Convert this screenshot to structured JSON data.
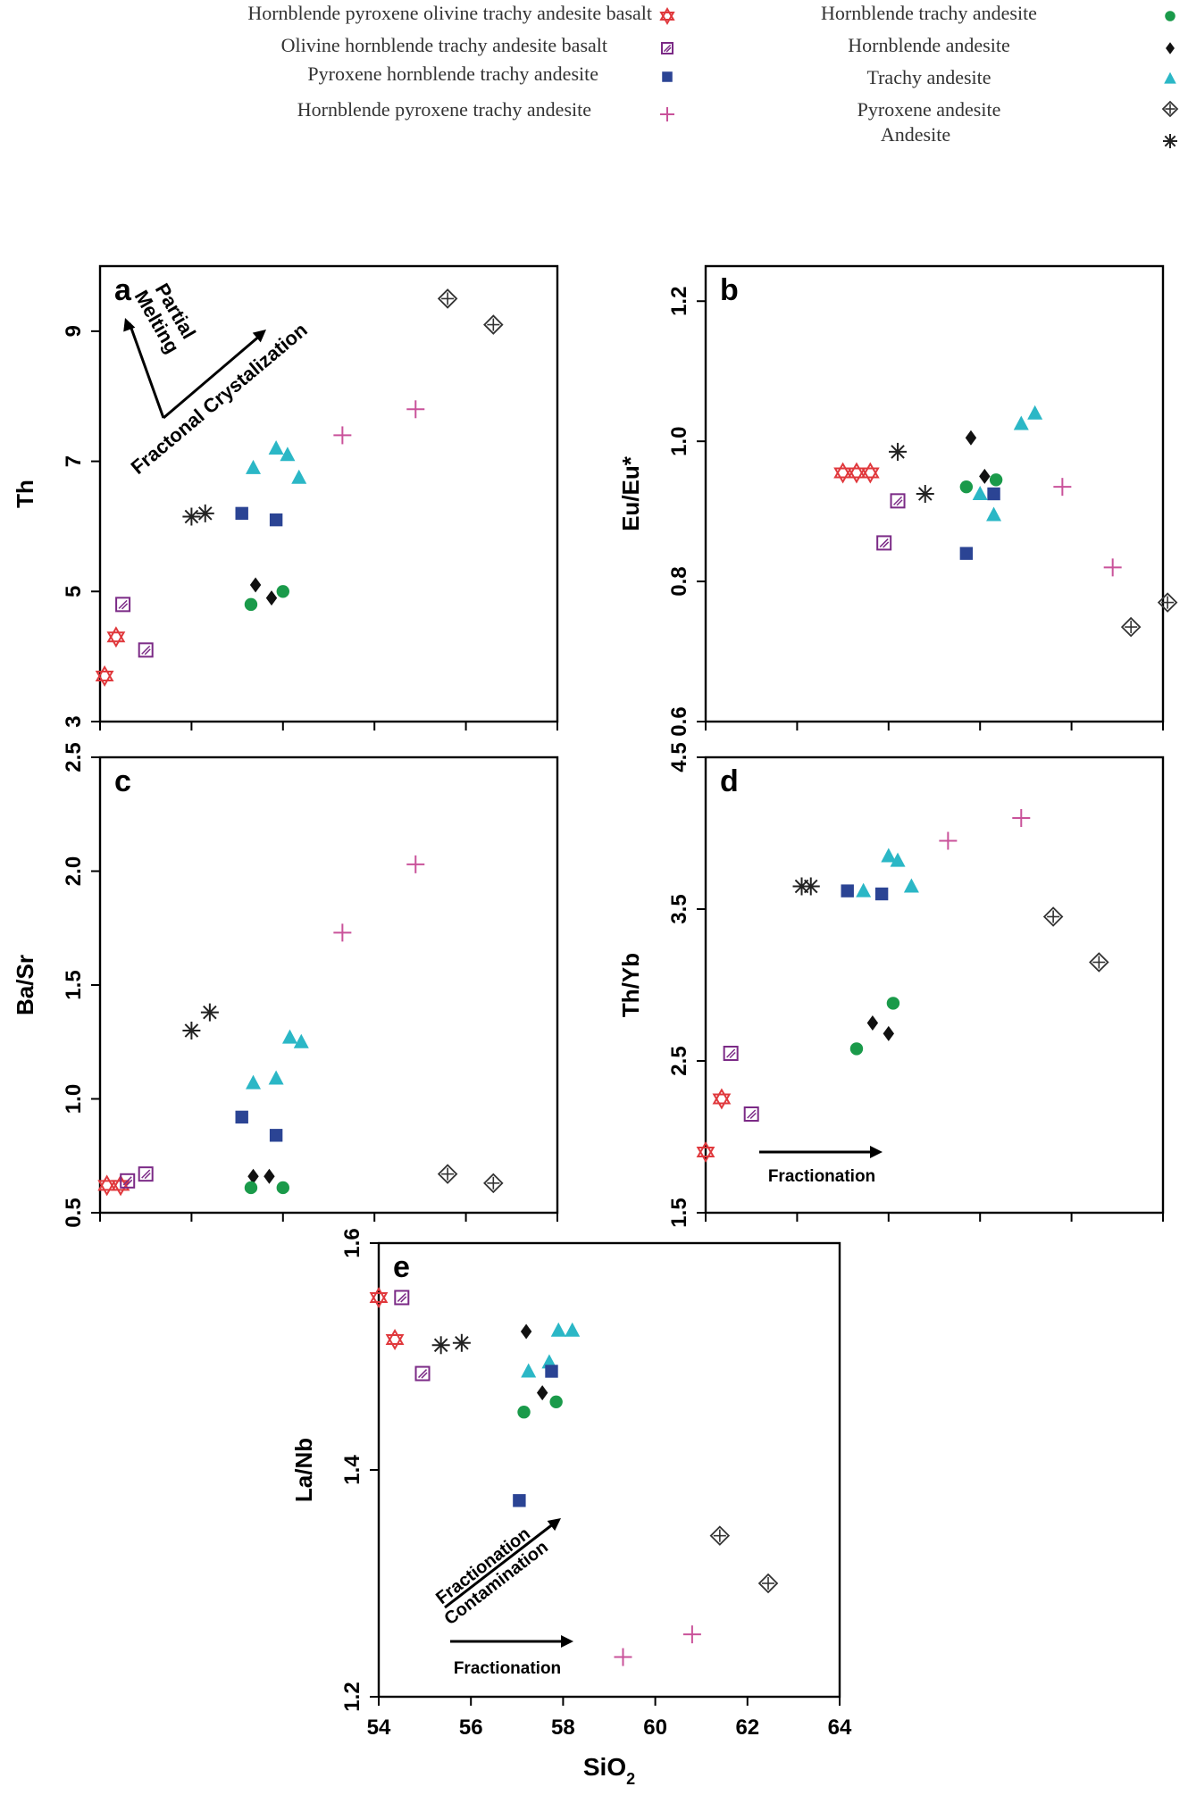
{
  "colors": {
    "hpotab": "#e0383c",
    "ohtab": "#7b2a86",
    "phta": "#2b4494",
    "hpta": "#c9529a",
    "hta": "#1a9a4a",
    "ha": "#111111",
    "ta": "#2bb7c6",
    "pa": "#333333",
    "andesite": "#222222"
  },
  "legend": {
    "items": [
      {
        "key": "hpotab",
        "label": "Hornblende pyroxene  olivine trachy andesite basalt",
        "marker": "star-of-david"
      },
      {
        "key": "ohtab",
        "label": "Olivine hornblende trachy andesite basalt",
        "marker": "hatched-square"
      },
      {
        "key": "phta",
        "label": "Pyroxene hornblende trachy andesite",
        "marker": "square"
      },
      {
        "key": "hpta",
        "label": "Hornblende pyroxene trachy andesite",
        "marker": "plus"
      },
      {
        "key": "hta",
        "label": "Hornblende trachy andesite",
        "marker": "circle"
      },
      {
        "key": "ha",
        "label": "Hornblende andesite",
        "marker": "diamond"
      },
      {
        "key": "ta",
        "label": "Trachy andesite",
        "marker": "triangle"
      },
      {
        "key": "pa",
        "label": "Pyroxene andesite",
        "marker": "crossed-diamond"
      },
      {
        "key": "andesite",
        "label": "Andesite",
        "marker": "asterisk"
      }
    ]
  },
  "chart_data": [
    {
      "panel": "a",
      "type": "scatter",
      "ylabel": "Th",
      "xlim": [
        54,
        64
      ],
      "ylim": [
        3,
        10
      ],
      "yticks": [
        3,
        5,
        7,
        9
      ],
      "annotations": [
        "Partial Melting",
        "Fractonal Crystalization"
      ],
      "series": [
        {
          "key": "hpotab",
          "points": [
            [
              54.1,
              3.7
            ],
            [
              54.35,
              4.3
            ]
          ]
        },
        {
          "key": "ohtab",
          "points": [
            [
              54.5,
              4.8
            ],
            [
              55,
              4.1
            ]
          ]
        },
        {
          "key": "andesite",
          "points": [
            [
              56,
              6.15
            ],
            [
              56.3,
              6.2
            ]
          ]
        },
        {
          "key": "phta",
          "points": [
            [
              57.1,
              6.2
            ],
            [
              57.85,
              6.1
            ]
          ]
        },
        {
          "key": "ta",
          "points": [
            [
              57.35,
              6.9
            ],
            [
              57.85,
              7.2
            ],
            [
              58.1,
              7.1
            ],
            [
              58.35,
              6.75
            ]
          ]
        },
        {
          "key": "ha",
          "points": [
            [
              57.4,
              5.1
            ],
            [
              57.75,
              4.9
            ]
          ]
        },
        {
          "key": "hta",
          "points": [
            [
              57.3,
              4.8
            ],
            [
              58,
              5
            ]
          ]
        },
        {
          "key": "hpta",
          "points": [
            [
              59.3,
              7.4
            ],
            [
              60.9,
              7.8
            ]
          ]
        },
        {
          "key": "pa",
          "points": [
            [
              61.6,
              9.5
            ],
            [
              62.6,
              9.1
            ]
          ]
        }
      ]
    },
    {
      "panel": "b",
      "type": "scatter",
      "ylabel": "Eu/Eu*",
      "xlim": [
        54,
        64
      ],
      "ylim": [
        0.6,
        1.25
      ],
      "yticks": [
        0.6,
        0.8,
        1,
        1.2
      ],
      "series": [
        {
          "key": "hpotab",
          "points": [
            [
              57,
              0.955
            ],
            [
              57.3,
              0.955
            ],
            [
              57.6,
              0.955
            ]
          ]
        },
        {
          "key": "ohtab",
          "points": [
            [
              57.9,
              0.855
            ],
            [
              58.2,
              0.915
            ]
          ]
        },
        {
          "key": "andesite",
          "points": [
            [
              58.2,
              0.985
            ],
            [
              58.8,
              0.925
            ]
          ]
        },
        {
          "key": "phta",
          "points": [
            [
              59.7,
              0.84
            ],
            [
              60.3,
              0.925
            ]
          ]
        },
        {
          "key": "ha",
          "points": [
            [
              59.8,
              1.005
            ],
            [
              60.1,
              0.95
            ]
          ]
        },
        {
          "key": "hta",
          "points": [
            [
              59.7,
              0.935
            ],
            [
              60.35,
              0.945
            ]
          ]
        },
        {
          "key": "ta",
          "points": [
            [
              60,
              0.925
            ],
            [
              60.3,
              0.895
            ],
            [
              60.9,
              1.025
            ],
            [
              61.2,
              1.04
            ]
          ]
        },
        {
          "key": "hpta",
          "points": [
            [
              61.8,
              0.935
            ],
            [
              62.9,
              0.82
            ]
          ]
        },
        {
          "key": "pa",
          "points": [
            [
              63.3,
              0.735
            ],
            [
              64.1,
              0.77
            ]
          ]
        }
      ]
    },
    {
      "panel": "c",
      "type": "scatter",
      "ylabel": "Ba/Sr",
      "xlim": [
        54,
        64
      ],
      "ylim": [
        0.5,
        2.5
      ],
      "yticks": [
        0.5,
        1.0,
        1.5,
        2.0,
        2.5
      ],
      "series": [
        {
          "key": "hpotab",
          "points": [
            [
              54.15,
              0.62
            ],
            [
              54.45,
              0.62
            ]
          ]
        },
        {
          "key": "ohtab",
          "points": [
            [
              54.6,
              0.64
            ],
            [
              55,
              0.67
            ]
          ]
        },
        {
          "key": "andesite",
          "points": [
            [
              56,
              1.3
            ],
            [
              56.4,
              1.38
            ]
          ]
        },
        {
          "key": "phta",
          "points": [
            [
              57.1,
              0.92
            ],
            [
              57.85,
              0.84
            ]
          ]
        },
        {
          "key": "ta",
          "points": [
            [
              57.35,
              1.07
            ],
            [
              57.85,
              1.09
            ],
            [
              58.15,
              1.27
            ],
            [
              58.4,
              1.25
            ]
          ]
        },
        {
          "key": "ha",
          "points": [
            [
              57.35,
              0.66
            ],
            [
              57.7,
              0.66
            ]
          ]
        },
        {
          "key": "hta",
          "points": [
            [
              57.3,
              0.61
            ],
            [
              58,
              0.61
            ]
          ]
        },
        {
          "key": "hpta",
          "points": [
            [
              59.3,
              1.73
            ],
            [
              60.9,
              2.03
            ]
          ]
        },
        {
          "key": "pa",
          "points": [
            [
              61.6,
              0.67
            ],
            [
              62.6,
              0.63
            ]
          ]
        }
      ]
    },
    {
      "panel": "d",
      "type": "scatter",
      "ylabel": "Th/Yb",
      "xlim": [
        54,
        64
      ],
      "ylim": [
        1.5,
        4.5
      ],
      "yticks": [
        1.5,
        2.5,
        3.5,
        4.5
      ],
      "annotations": [
        "Fractionation"
      ],
      "series": [
        {
          "key": "hpotab",
          "points": [
            [
              54,
              1.9
            ],
            [
              54.35,
              2.25
            ]
          ]
        },
        {
          "key": "ohtab",
          "points": [
            [
              54.55,
              2.55
            ],
            [
              55,
              2.15
            ]
          ]
        },
        {
          "key": "andesite",
          "points": [
            [
              56.1,
              3.65
            ],
            [
              56.3,
              3.65
            ]
          ]
        },
        {
          "key": "phta",
          "points": [
            [
              57.1,
              3.62
            ],
            [
              57.85,
              3.6
            ]
          ]
        },
        {
          "key": "ta",
          "points": [
            [
              57.45,
              3.62
            ],
            [
              58,
              3.85
            ],
            [
              58.2,
              3.82
            ],
            [
              58.5,
              3.65
            ]
          ]
        },
        {
          "key": "ha",
          "points": [
            [
              57.65,
              2.75
            ],
            [
              58,
              2.68
            ]
          ]
        },
        {
          "key": "hta",
          "points": [
            [
              57.3,
              2.58
            ],
            [
              58.1,
              2.88
            ]
          ]
        },
        {
          "key": "hpta",
          "points": [
            [
              59.3,
              3.95
            ],
            [
              60.9,
              4.1
            ]
          ]
        },
        {
          "key": "pa",
          "points": [
            [
              61.6,
              3.45
            ],
            [
              62.6,
              3.15
            ]
          ]
        }
      ]
    },
    {
      "panel": "e",
      "type": "scatter",
      "ylabel": "La/Nb",
      "xlabel": "SiO2",
      "xlim": [
        54,
        64
      ],
      "ylim": [
        1.2,
        1.6
      ],
      "xticks": [
        54,
        56,
        58,
        60,
        62,
        64
      ],
      "yticks": [
        1.2,
        1.4,
        1.6
      ],
      "annotations": [
        "Fractionation Contamination",
        "Fractionation"
      ],
      "series": [
        {
          "key": "hpotab",
          "points": [
            [
              54,
              1.552
            ],
            [
              54.35,
              1.515
            ]
          ]
        },
        {
          "key": "ohtab",
          "points": [
            [
              54.5,
              1.552
            ],
            [
              54.95,
              1.485
            ]
          ]
        },
        {
          "key": "andesite",
          "points": [
            [
              55.35,
              1.51
            ],
            [
              55.8,
              1.512
            ]
          ]
        },
        {
          "key": "ha",
          "points": [
            [
              57.2,
              1.522
            ],
            [
              57.55,
              1.468
            ]
          ]
        },
        {
          "key": "ta",
          "points": [
            [
              57.25,
              1.487
            ],
            [
              57.7,
              1.495
            ],
            [
              57.9,
              1.523
            ],
            [
              58.2,
              1.523
            ]
          ]
        },
        {
          "key": "phta",
          "points": [
            [
              57.05,
              1.373
            ],
            [
              57.75,
              1.487
            ]
          ]
        },
        {
          "key": "hta",
          "points": [
            [
              57.15,
              1.451
            ],
            [
              57.85,
              1.46
            ]
          ]
        },
        {
          "key": "hpta",
          "points": [
            [
              59.3,
              1.235
            ],
            [
              60.8,
              1.255
            ]
          ]
        },
        {
          "key": "pa",
          "points": [
            [
              61.4,
              1.342
            ],
            [
              62.45,
              1.3
            ]
          ]
        }
      ]
    }
  ]
}
